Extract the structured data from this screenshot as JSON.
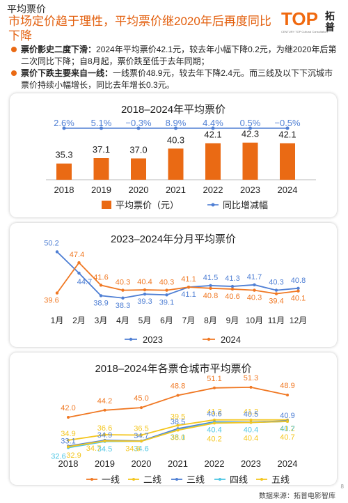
{
  "page": {
    "section": "平均票价",
    "headline": "市场定价趋于理性，平均票价继2020年后再度同比下降",
    "logo_text": "TOP",
    "logo_cn": "拓普",
    "logo_sub": "CENTURY TOP Cultural Consultation",
    "bullets": [
      {
        "title": "票价影史二度下滑：",
        "text": "2024年平均票价42.1元，较去年小幅下降0.2元，为继2020年后第二次同比下降；自8月起，票价跌至低于去年同期；"
      },
      {
        "title": "票价下跌主要来自一线：",
        "text": "一线票价48.9元，较去年下降2.4元。而三线及以下下沉城市票价持续小幅增长，同比去年增长0.3元。"
      }
    ],
    "source": "数据来源：拓普电影智库",
    "page_number": "8",
    "colors": {
      "accent": "#ea6a14",
      "blue": "#4f7fd4",
      "orange": "#f07823",
      "yellow": "#f4c61f",
      "cyan": "#4fc6e4"
    }
  },
  "chart_data": [
    {
      "type": "bar",
      "title": "2018–2024年平均票价",
      "categories": [
        "2018",
        "2019",
        "2020",
        "2021",
        "2022",
        "2023",
        "2024"
      ],
      "series": [
        {
          "name": "平均票价（元）",
          "type": "bar",
          "values": [
            35.3,
            37.1,
            37.0,
            40.3,
            42.1,
            42.3,
            42.1
          ],
          "labels": [
            "35.3",
            "37.1",
            "37.0",
            "40.3",
            "42.1",
            "42.3",
            "42.1"
          ],
          "color": "#ea6a14"
        },
        {
          "name": "同比增减幅",
          "type": "line",
          "values": [
            2.6,
            5.1,
            -0.3,
            8.9,
            4.4,
            0.5,
            -0.5
          ],
          "labels": [
            "2.6%",
            "5.1%",
            "−0.3%",
            "8.9%",
            "4.4%",
            "0.5%",
            "−0.5%"
          ],
          "color": "#4f7fd4"
        }
      ],
      "legend_position": "bottom"
    },
    {
      "type": "line",
      "title": "2023–2024年分月平均票价",
      "categories": [
        "1月",
        "2月",
        "3月",
        "4月",
        "5月",
        "6月",
        "7月",
        "8月",
        "9月",
        "10月",
        "11月",
        "12月"
      ],
      "series": [
        {
          "name": "2023",
          "values": [
            50.2,
            44.7,
            38.9,
            38.3,
            39.3,
            39.1,
            41.1,
            41.5,
            41.3,
            41.7,
            40.3,
            40.8
          ],
          "color": "#4f7fd4"
        },
        {
          "name": "2024",
          "values": [
            39.6,
            47.4,
            41.6,
            40.3,
            40.4,
            40.3,
            41.1,
            40.8,
            40.6,
            40.3,
            39.4,
            40.1
          ],
          "color": "#f07823"
        }
      ],
      "legend_position": "bottom"
    },
    {
      "type": "line",
      "title": "2018–2024年各票仓城市平均票价",
      "categories": [
        "2018",
        "2019",
        "2020",
        "2021",
        "2022",
        "2023",
        "2024"
      ],
      "series": [
        {
          "name": "一线",
          "values": [
            42.0,
            44.2,
            45.0,
            48.8,
            51.1,
            51.3,
            48.9
          ],
          "color": "#f07823"
        },
        {
          "name": "二线",
          "values": [
            34.9,
            36.6,
            36.5,
            39.5,
            41.2,
            41.2,
            41.2
          ],
          "color": "#f4c61f"
        },
        {
          "name": "三线",
          "values": [
            33.1,
            34.9,
            34.7,
            38.5,
            40.6,
            40.5,
            40.9
          ],
          "color": "#4f7fd4"
        },
        {
          "name": "四线",
          "values": [
            32.6,
            34.5,
            34.6,
            38.1,
            40.4,
            40.4,
            40.7
          ],
          "color": "#4fc6e4"
        },
        {
          "name": "五线",
          "values": [
            32.9,
            34.7,
            34.6,
            38.0,
            40.2,
            40.4,
            40.7
          ],
          "color": "#f4c61f"
        }
      ],
      "legend_position": "bottom"
    }
  ]
}
